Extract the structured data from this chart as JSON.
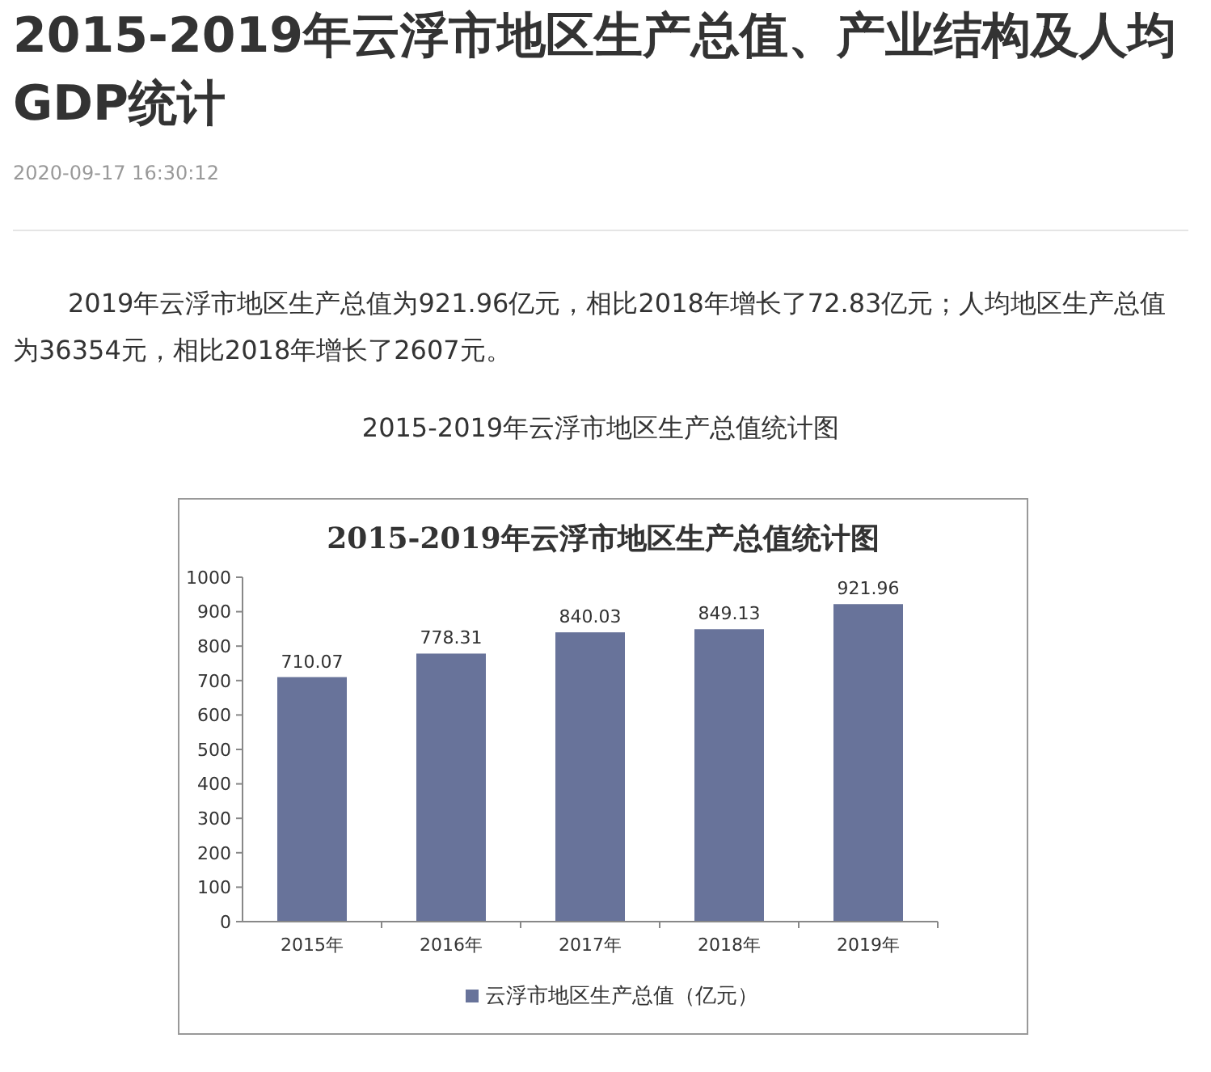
{
  "chart_data": {
    "type": "bar",
    "title": "2015-2019年云浮市地区生产总值统计图",
    "annotations": [
      "2015-2019年云浮市地区生产总值、产业结构及人均GDP统计",
      "2020-09-17 16:30:12",
      "2019年云浮市地区生产总值为921.96亿元，相比2018年增长了72.83亿元；人均地区生产总值为36354元，相比2018年增长了2607元。",
      "2015-2019年云浮市地区生产总值统计图"
    ],
    "categories": [
      "2015年",
      "2016年",
      "2017年",
      "2018年",
      "2019年"
    ],
    "series": [
      {
        "name": "云浮市地区生产总值（亿元）",
        "color": "#68739a",
        "values": [
          710.07,
          778.31,
          840.03,
          849.13,
          921.96
        ]
      }
    ],
    "ylim": [
      0,
      1000
    ],
    "yticks": [
      0,
      100,
      200,
      300,
      400,
      500,
      600,
      700,
      800,
      900,
      1000
    ],
    "data_labels": true,
    "legend": "bottom",
    "grid": false
  }
}
